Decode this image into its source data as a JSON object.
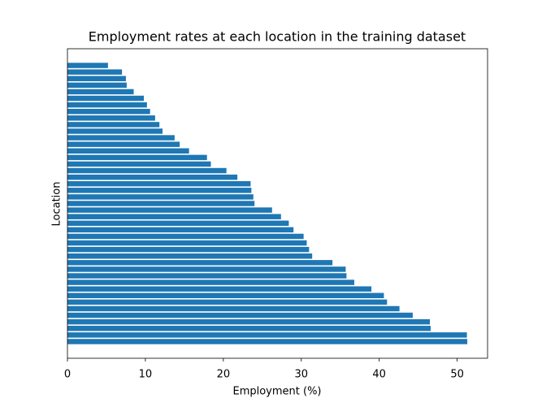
{
  "chart_data": {
    "type": "barh",
    "title": "Employment rates at each location in the training dataset",
    "x_label": "Employment (%)",
    "y_label": "Location",
    "color": "#1f77b4",
    "categories": [
      null,
      null,
      null,
      null,
      null,
      null,
      null,
      null,
      null,
      null,
      null,
      null,
      null,
      null,
      null,
      null,
      null,
      null,
      null,
      null,
      null,
      null,
      null,
      null,
      null,
      null,
      null,
      null,
      null,
      null,
      null,
      null,
      null,
      null,
      null,
      null,
      null,
      null,
      null,
      null,
      null,
      null,
      null
    ],
    "values": [
      5.2,
      7.0,
      7.5,
      7.6,
      8.5,
      9.8,
      10.2,
      10.6,
      11.25,
      11.8,
      12.2,
      13.75,
      14.4,
      15.6,
      17.9,
      18.4,
      20.4,
      21.8,
      23.5,
      23.6,
      23.85,
      24.0,
      26.25,
      27.4,
      28.4,
      29.0,
      30.3,
      30.7,
      31.0,
      31.4,
      34.0,
      35.7,
      35.8,
      36.8,
      39.0,
      40.6,
      41.0,
      42.6,
      44.3,
      46.5,
      46.6,
      51.25,
      51.3
    ],
    "xlim": [
      0,
      53.9
    ],
    "xticks": [
      0,
      10,
      20,
      30,
      40,
      50
    ]
  }
}
